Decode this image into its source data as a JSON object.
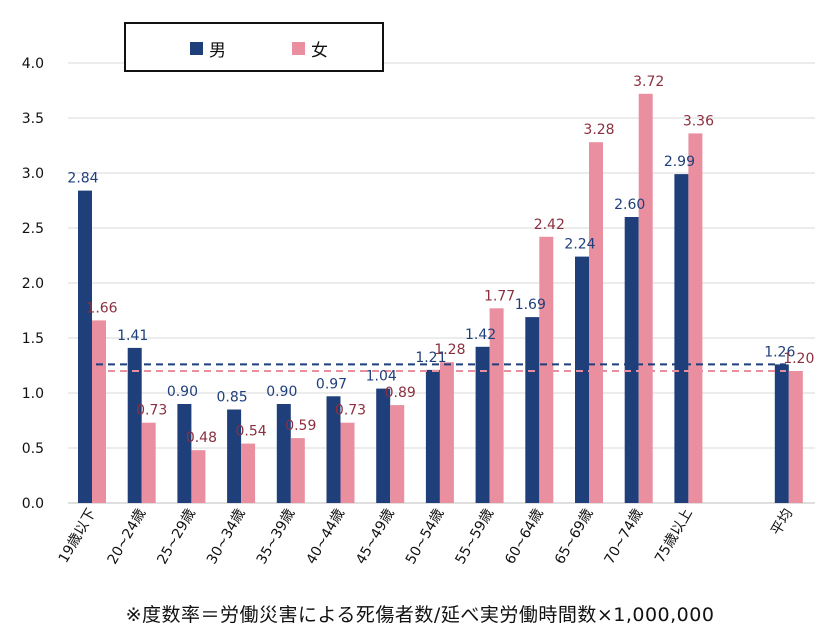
{
  "colors": {
    "male": "#1f3f7a",
    "female": "#e98fa0",
    "female_label": "#8b3040",
    "grid": "#d9d9d9"
  },
  "legend": {
    "male_label": "男",
    "female_label": "女"
  },
  "footnote": "※度数率＝労働災害による死傷者数/延べ実労働時間数×1,000,000",
  "chart_data": {
    "type": "bar",
    "categories": [
      "19歳以下",
      "20~24歳",
      "25~29歳",
      "30~34歳",
      "35~39歳",
      "40~44歳",
      "45~49歳",
      "50~54歳",
      "55~59歳",
      "60~64歳",
      "65~69歳",
      "70~74歳",
      "75歳以上",
      "平均"
    ],
    "series": [
      {
        "name": "男",
        "values": [
          2.84,
          1.41,
          0.9,
          0.85,
          0.9,
          0.97,
          1.04,
          1.21,
          1.42,
          1.69,
          2.24,
          2.6,
          2.99,
          1.26
        ]
      },
      {
        "name": "女",
        "values": [
          1.66,
          0.73,
          0.48,
          0.54,
          0.59,
          0.73,
          0.89,
          1.28,
          1.77,
          2.42,
          3.28,
          3.72,
          3.36,
          1.2
        ]
      }
    ],
    "value_labels": {
      "男": [
        "2.84",
        "1.41",
        "0.90",
        "0.85",
        "0.90",
        "0.97",
        "1.04",
        "1.21",
        "1.42",
        "1.69",
        "2.24",
        "2.60",
        "2.99",
        "1.26"
      ],
      "女": [
        "1.66",
        "0.73",
        "0.48",
        "0.54",
        "0.59",
        "0.73",
        "0.89",
        "1.28",
        "1.77",
        "2.42",
        "3.28",
        "3.72",
        "3.36",
        "1.20"
      ]
    },
    "y_ticks": [
      "0.0",
      "0.5",
      "1.0",
      "1.5",
      "2.0",
      "2.5",
      "3.0",
      "3.5",
      "4.0"
    ],
    "ylim": [
      0,
      4.0
    ],
    "reference_lines": [
      {
        "series": "男",
        "value": 1.26,
        "style": "dashed"
      },
      {
        "series": "女",
        "value": 1.2,
        "style": "dashed"
      }
    ],
    "grid": true,
    "legend_position": "top-left"
  }
}
